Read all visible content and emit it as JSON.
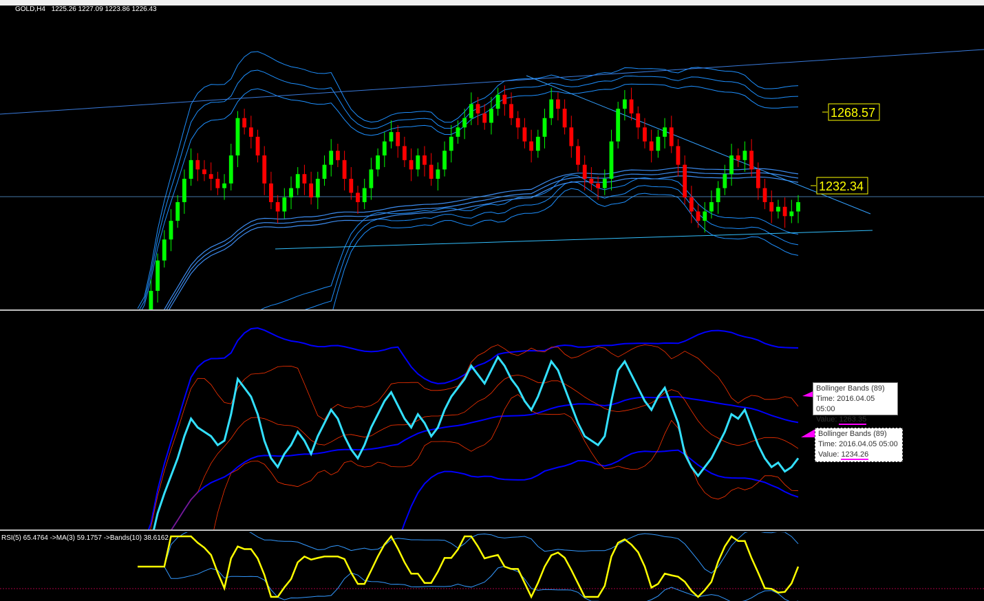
{
  "header": {
    "symbol": "GOLD,H4",
    "ohlc": "1225.26 1227.09 1223.86 1226.43"
  },
  "price_labels": [
    "1268.57",
    "1232.34"
  ],
  "tooltips": [
    {
      "title": "Bollinger Bands (89)",
      "time_label": "Time:",
      "time": "2016.04.05 05:00",
      "value_label": "Value:",
      "value": "1263.35"
    },
    {
      "title": "Bollinger Bands (89)",
      "time_label": "Time:",
      "time": "2016.04.05 05:00",
      "value_label": "Value:",
      "value": "1234.26"
    }
  ],
  "rsi_header": "RSI(5) 65.4764  ->MA(3) 59.1757  ->Bands(10) 38.6162",
  "colors": {
    "background": "#000000",
    "bull_candle": "#00ff00",
    "bear_candle": "#ff0000",
    "envelope": "#1e90ff",
    "trendline": "#4aa3ff",
    "close_line": "#33e0ff",
    "bb_main": "#0000ff",
    "bb_small": "#ff3300",
    "rsi": "#ffff00",
    "rsi_bands": "#3399ff",
    "marker": "#ff00ff",
    "price_label": "#ffff00"
  },
  "chart_data": {
    "type": "line",
    "x_unit": "H4 bars",
    "series": [
      {
        "close": [
          1170,
          1180,
          1192,
          1205,
          1214,
          1222,
          1230,
          1240,
          1248,
          1244,
          1242,
          1240,
          1236,
          1238,
          1250,
          1266,
          1262,
          1258,
          1250,
          1238,
          1230,
          1226,
          1232,
          1236,
          1242,
          1238,
          1232,
          1240,
          1246,
          1252,
          1248,
          1240,
          1234,
          1230,
          1236,
          1244,
          1250,
          1256,
          1260,
          1254,
          1248,
          1244,
          1250,
          1246,
          1240,
          1244,
          1252,
          1258,
          1262,
          1266,
          1272,
          1268,
          1264,
          1270,
          1276,
          1272,
          1266,
          1262,
          1256,
          1252,
          1258,
          1266,
          1274,
          1270,
          1262,
          1254,
          1246,
          1240,
          1238,
          1236,
          1240,
          1256,
          1270,
          1274,
          1268,
          1262,
          1256,
          1252,
          1258,
          1262,
          1254,
          1246,
          1232,
          1226,
          1222,
          1226,
          1230,
          1236,
          1242,
          1250,
          1248,
          1252,
          1244,
          1236,
          1230,
          1226,
          1228,
          1224,
          1226,
          1230
        ]
      }
    ],
    "price_levels": [
      1268.57,
      1232.34
    ],
    "bollinger_values": [
      1263.35,
      1234.26
    ],
    "bollinger_period": 89,
    "rsi": {
      "period": 5,
      "value": 65.4764,
      "ma_period": 3,
      "ma_value": 59.1757,
      "bands_period": 10,
      "bands_value": 38.6162
    }
  }
}
